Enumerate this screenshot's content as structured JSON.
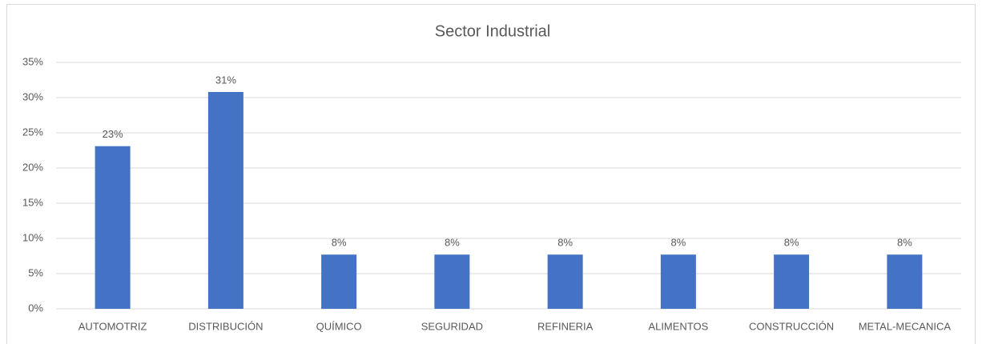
{
  "chart_data": {
    "type": "bar",
    "title": "Sector Industrial",
    "categories": [
      "AUTOMOTRIZ",
      "DISTRIBUCIÓN",
      "QUÍMICO",
      "SEGURIDAD",
      "REFINERIA",
      "ALIMENTOS",
      "CONSTRUCCIÓN",
      "METAL-MECANICA"
    ],
    "values": [
      23.1,
      30.8,
      7.7,
      7.7,
      7.7,
      7.7,
      7.7,
      7.7
    ],
    "value_labels": [
      "23%",
      "31%",
      "8%",
      "8%",
      "8%",
      "8%",
      "8%",
      "8%"
    ],
    "color": "#4472c4",
    "ylim": [
      0,
      35
    ],
    "yticks": [
      {
        "value": 0,
        "label": "0%"
      },
      {
        "value": 5,
        "label": "5%"
      },
      {
        "value": 10,
        "label": "10%"
      },
      {
        "value": 15,
        "label": "15%"
      },
      {
        "value": 20,
        "label": "20%"
      },
      {
        "value": 25,
        "label": "25%"
      },
      {
        "value": 30,
        "label": "30%"
      },
      {
        "value": 35,
        "label": "35%"
      }
    ],
    "grid": true
  }
}
